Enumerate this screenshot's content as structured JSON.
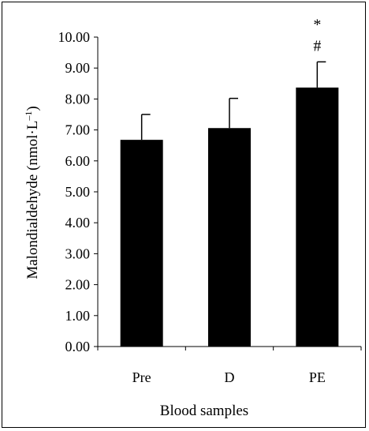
{
  "chart_data": {
    "type": "bar",
    "categories": [
      "Pre",
      "D",
      "PE"
    ],
    "values": [
      6.68,
      7.06,
      8.37
    ],
    "error_upper": [
      7.5,
      8.02,
      9.2
    ],
    "annotations": [
      {
        "category": "PE",
        "marks": [
          "*",
          "#"
        ]
      }
    ],
    "title": "",
    "xlabel": "Blood samples",
    "ylabel": "Malondialdehyde (nmol·L",
    "ylabel_superscript": "–1",
    "ylabel_close": ")",
    "ylim": [
      0,
      10
    ],
    "yticks": [
      "0.00",
      "1.00",
      "2.00",
      "3.00",
      "4.00",
      "5.00",
      "6.00",
      "7.00",
      "8.00",
      "9.00",
      "10.00"
    ],
    "bar_color": "#000000",
    "grid": false,
    "legend": "none"
  }
}
